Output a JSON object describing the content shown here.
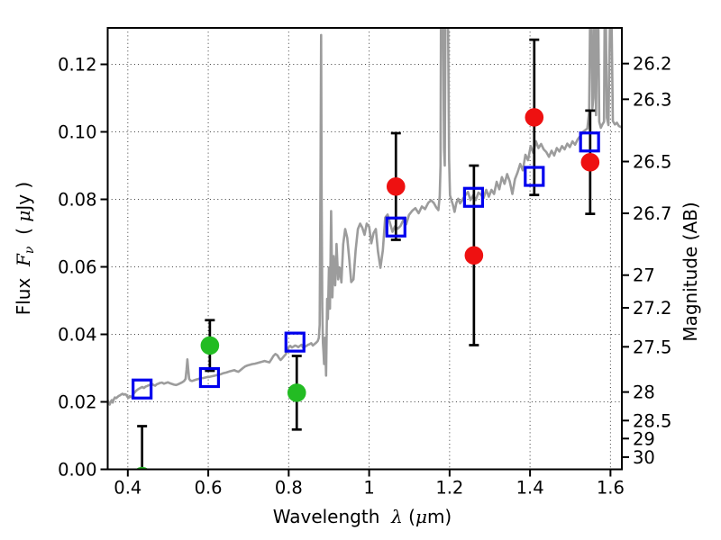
{
  "figure": {
    "background": "#ffffff"
  },
  "chart_data": {
    "type": "line+scatter",
    "title": "",
    "description": "Galaxy SED: gray model spectrum, photometry points with error bars, open squares for synthetic photometry",
    "x_axis": {
      "label_parts": {
        "word": "Wavelength  ",
        "symbol": "λ",
        "open": " (",
        "mu": "μ",
        "close": "m)"
      },
      "lim": [
        0.35,
        1.6283
      ],
      "ticks": [
        {
          "v": 0.4,
          "label": "0.4"
        },
        {
          "v": 0.6,
          "label": "0.6"
        },
        {
          "v": 0.8,
          "label": "0.8"
        },
        {
          "v": 1.0,
          "label": "1"
        },
        {
          "v": 1.2,
          "label": "1.2"
        },
        {
          "v": 1.4,
          "label": "1.4"
        },
        {
          "v": 1.6,
          "label": "1.6"
        }
      ]
    },
    "y_axis_left": {
      "label_parts": {
        "word": "Flux  ",
        "f": "F",
        "sub": "ν",
        "mid": "  ( ",
        "mu": "μ",
        "close": "Jy )"
      },
      "lim": [
        0,
        0.1308
      ],
      "ticks": [
        {
          "v": 0.0,
          "label": "0.00"
        },
        {
          "v": 0.02,
          "label": "0.02"
        },
        {
          "v": 0.04,
          "label": "0.04"
        },
        {
          "v": 0.06,
          "label": "0.06"
        },
        {
          "v": 0.08,
          "label": "0.08"
        },
        {
          "v": 0.1,
          "label": "0.10"
        },
        {
          "v": 0.12,
          "label": "0.12"
        }
      ]
    },
    "y_axis_right": {
      "label": "Magnitude (AB)",
      "zero_point": 23.9,
      "ticks": [
        {
          "mag": 26.2,
          "label": "26.2"
        },
        {
          "mag": 26.3,
          "label": "26.3"
        },
        {
          "mag": 26.5,
          "label": "26.5"
        },
        {
          "mag": 26.7,
          "label": "26.7"
        },
        {
          "mag": 27.0,
          "label": "27"
        },
        {
          "mag": 27.2,
          "label": "27.2"
        },
        {
          "mag": 27.5,
          "label": "27.5"
        },
        {
          "mag": 28.0,
          "label": "28"
        },
        {
          "mag": 28.5,
          "label": "28.5"
        },
        {
          "mag": 29.0,
          "label": "29"
        },
        {
          "mag": 30.0,
          "label": "30"
        }
      ]
    },
    "grid": {
      "on": true,
      "style": "dotted"
    },
    "colors": {
      "spectrum": "#9c9c9c",
      "green": "#23bc23",
      "red": "#ee1111",
      "blue": "#0000ee",
      "errorbar": "#000000"
    },
    "spectrum": {
      "name": "model-spectrum",
      "points": [
        [
          0.35,
          0.0205
        ],
        [
          0.3525,
          0.0196
        ],
        [
          0.355,
          0.0192
        ],
        [
          0.3575,
          0.02
        ],
        [
          0.36,
          0.0205
        ],
        [
          0.3625,
          0.0198
        ],
        [
          0.365,
          0.0207
        ],
        [
          0.368,
          0.0213
        ],
        [
          0.371,
          0.0211
        ],
        [
          0.374,
          0.0214
        ],
        [
          0.377,
          0.0217
        ],
        [
          0.38,
          0.0219
        ],
        [
          0.3835,
          0.0222
        ],
        [
          0.387,
          0.0224
        ],
        [
          0.39,
          0.0221
        ],
        [
          0.393,
          0.0223
        ],
        [
          0.396,
          0.0221
        ],
        [
          0.399,
          0.0215
        ],
        [
          0.402,
          0.0212
        ],
        [
          0.405,
          0.0217
        ],
        [
          0.408,
          0.0214
        ],
        [
          0.411,
          0.0218
        ],
        [
          0.414,
          0.0224
        ],
        [
          0.417,
          0.0228
        ],
        [
          0.42,
          0.0232
        ],
        [
          0.424,
          0.0236
        ],
        [
          0.428,
          0.0239
        ],
        [
          0.432,
          0.0242
        ],
        [
          0.436,
          0.0244
        ],
        [
          0.44,
          0.0241
        ],
        [
          0.444,
          0.0245
        ],
        [
          0.448,
          0.0247
        ],
        [
          0.452,
          0.0249
        ],
        [
          0.456,
          0.0251
        ],
        [
          0.46,
          0.0253
        ],
        [
          0.464,
          0.025
        ],
        [
          0.468,
          0.0248
        ],
        [
          0.472,
          0.0252
        ],
        [
          0.476,
          0.0254
        ],
        [
          0.48,
          0.0256
        ],
        [
          0.485,
          0.0257
        ],
        [
          0.49,
          0.0254
        ],
        [
          0.495,
          0.0256
        ],
        [
          0.5,
          0.0258
        ],
        [
          0.505,
          0.0255
        ],
        [
          0.51,
          0.0253
        ],
        [
          0.515,
          0.0251
        ],
        [
          0.52,
          0.025
        ],
        [
          0.525,
          0.0252
        ],
        [
          0.53,
          0.0255
        ],
        [
          0.535,
          0.0258
        ],
        [
          0.54,
          0.0262
        ],
        [
          0.5435,
          0.0268
        ],
        [
          0.546,
          0.0296
        ],
        [
          0.548,
          0.0326
        ],
        [
          0.55,
          0.0298
        ],
        [
          0.5525,
          0.0268
        ],
        [
          0.556,
          0.0263
        ],
        [
          0.56,
          0.0262
        ],
        [
          0.565,
          0.0264
        ],
        [
          0.57,
          0.0266
        ],
        [
          0.576,
          0.0268
        ],
        [
          0.582,
          0.027
        ],
        [
          0.589,
          0.0271
        ],
        [
          0.596,
          0.0273
        ],
        [
          0.603,
          0.0274
        ],
        [
          0.61,
          0.0276
        ],
        [
          0.617,
          0.0278
        ],
        [
          0.624,
          0.028
        ],
        [
          0.631,
          0.0282
        ],
        [
          0.638,
          0.0285
        ],
        [
          0.645,
          0.0287
        ],
        [
          0.652,
          0.029
        ],
        [
          0.659,
          0.0292
        ],
        [
          0.665,
          0.0294
        ],
        [
          0.67,
          0.0291
        ],
        [
          0.675,
          0.0289
        ],
        [
          0.68,
          0.0294
        ],
        [
          0.686,
          0.03
        ],
        [
          0.692,
          0.0305
        ],
        [
          0.698,
          0.0308
        ],
        [
          0.704,
          0.031
        ],
        [
          0.71,
          0.0312
        ],
        [
          0.716,
          0.0313
        ],
        [
          0.722,
          0.0315
        ],
        [
          0.728,
          0.0317
        ],
        [
          0.734,
          0.0319
        ],
        [
          0.74,
          0.0321
        ],
        [
          0.746,
          0.0319
        ],
        [
          0.752,
          0.0317
        ],
        [
          0.757,
          0.0326
        ],
        [
          0.762,
          0.0336
        ],
        [
          0.767,
          0.0342
        ],
        [
          0.772,
          0.0338
        ],
        [
          0.776,
          0.033
        ],
        [
          0.78,
          0.0324
        ],
        [
          0.784,
          0.0329
        ],
        [
          0.788,
          0.0335
        ],
        [
          0.792,
          0.034
        ],
        [
          0.796,
          0.0349
        ],
        [
          0.8,
          0.0362
        ],
        [
          0.804,
          0.0366
        ],
        [
          0.808,
          0.0361
        ],
        [
          0.812,
          0.0364
        ],
        [
          0.816,
          0.0367
        ],
        [
          0.82,
          0.0365
        ],
        [
          0.824,
          0.0362
        ],
        [
          0.828,
          0.0366
        ],
        [
          0.832,
          0.0369
        ],
        [
          0.836,
          0.036
        ],
        [
          0.84,
          0.0363
        ],
        [
          0.844,
          0.0366
        ],
        [
          0.848,
          0.0369
        ],
        [
          0.852,
          0.0371
        ],
        [
          0.856,
          0.0374
        ],
        [
          0.86,
          0.0367
        ],
        [
          0.864,
          0.0371
        ],
        [
          0.868,
          0.0375
        ],
        [
          0.872,
          0.038
        ],
        [
          0.875,
          0.039
        ],
        [
          0.877,
          0.0428
        ],
        [
          0.879,
          0.085
        ],
        [
          0.8805,
          0.1287
        ],
        [
          0.882,
          0.08
        ],
        [
          0.8835,
          0.048
        ],
        [
          0.885,
          0.0375
        ],
        [
          0.8865,
          0.035
        ],
        [
          0.888,
          0.0312
        ],
        [
          0.89,
          0.039
        ],
        [
          0.8915,
          0.034
        ],
        [
          0.893,
          0.0278
        ],
        [
          0.8955,
          0.0505
        ],
        [
          0.8975,
          0.0445
        ],
        [
          0.9,
          0.0598
        ],
        [
          0.9025,
          0.0476
        ],
        [
          0.9055,
          0.0765
        ],
        [
          0.9085,
          0.051
        ],
        [
          0.9115,
          0.0632
        ],
        [
          0.9155,
          0.0545
        ],
        [
          0.919,
          0.0668
        ],
        [
          0.923,
          0.0563
        ],
        [
          0.9275,
          0.0597
        ],
        [
          0.931,
          0.0554
        ],
        [
          0.9355,
          0.0667
        ],
        [
          0.9405,
          0.0712
        ],
        [
          0.9455,
          0.0686
        ],
        [
          0.9505,
          0.0624
        ],
        [
          0.9555,
          0.0555
        ],
        [
          0.961,
          0.0563
        ],
        [
          0.9665,
          0.0649
        ],
        [
          0.972,
          0.0712
        ],
        [
          0.9775,
          0.0728
        ],
        [
          0.983,
          0.0716
        ],
        [
          0.9885,
          0.0695
        ],
        [
          0.994,
          0.0728
        ],
        [
          1.0,
          0.0719
        ],
        [
          1.0055,
          0.067
        ],
        [
          1.011,
          0.07
        ],
        [
          1.0165,
          0.0712
        ],
        [
          1.022,
          0.0645
        ],
        [
          1.028,
          0.0597
        ],
        [
          1.034,
          0.0649
        ],
        [
          1.04,
          0.0746
        ],
        [
          1.046,
          0.0755
        ],
        [
          1.052,
          0.0729
        ],
        [
          1.058,
          0.0704
        ],
        [
          1.064,
          0.072
        ],
        [
          1.071,
          0.0713
        ],
        [
          1.078,
          0.0721
        ],
        [
          1.085,
          0.0739
        ],
        [
          1.092,
          0.0726
        ],
        [
          1.099,
          0.0754
        ],
        [
          1.107,
          0.0766
        ],
        [
          1.115,
          0.0774
        ],
        [
          1.123,
          0.0759
        ],
        [
          1.131,
          0.0779
        ],
        [
          1.139,
          0.0771
        ],
        [
          1.147,
          0.079
        ],
        [
          1.154,
          0.0797
        ],
        [
          1.161,
          0.0789
        ],
        [
          1.167,
          0.0776
        ],
        [
          1.172,
          0.0768
        ],
        [
          1.1755,
          0.081
        ],
        [
          1.1775,
          0.09
        ],
        [
          1.1787,
          0.135
        ],
        [
          1.1835,
          0.135
        ],
        [
          1.1863,
          0.095
        ],
        [
          1.188,
          0.09
        ],
        [
          1.1899,
          0.135
        ],
        [
          1.196,
          0.135
        ],
        [
          1.1988,
          0.092
        ],
        [
          1.201,
          0.0812
        ],
        [
          1.204,
          0.08
        ],
        [
          1.208,
          0.0785
        ],
        [
          1.2125,
          0.0763
        ],
        [
          1.217,
          0.079
        ],
        [
          1.2215,
          0.0802
        ],
        [
          1.226,
          0.0788
        ],
        [
          1.2325,
          0.08
        ],
        [
          1.239,
          0.0812
        ],
        [
          1.2455,
          0.0822
        ],
        [
          1.252,
          0.0798
        ],
        [
          1.2585,
          0.0812
        ],
        [
          1.265,
          0.0798
        ],
        [
          1.2715,
          0.082
        ],
        [
          1.278,
          0.0814
        ],
        [
          1.2845,
          0.0804
        ],
        [
          1.291,
          0.0828
        ],
        [
          1.2975,
          0.0808
        ],
        [
          1.304,
          0.0828
        ],
        [
          1.3105,
          0.0816
        ],
        [
          1.317,
          0.0852
        ],
        [
          1.3235,
          0.083
        ],
        [
          1.33,
          0.0866
        ],
        [
          1.3365,
          0.0846
        ],
        [
          1.343,
          0.0875
        ],
        [
          1.3495,
          0.0853
        ],
        [
          1.356,
          0.0816
        ],
        [
          1.3625,
          0.086
        ],
        [
          1.369,
          0.088
        ],
        [
          1.3755,
          0.0905
        ],
        [
          1.382,
          0.0886
        ],
        [
          1.3885,
          0.0932
        ],
        [
          1.395,
          0.0916
        ],
        [
          1.4015,
          0.0958
        ],
        [
          1.408,
          0.0938
        ],
        [
          1.4145,
          0.0972
        ],
        [
          1.421,
          0.0952
        ],
        [
          1.4275,
          0.0964
        ],
        [
          1.434,
          0.0948
        ],
        [
          1.4405,
          0.094
        ],
        [
          1.447,
          0.0926
        ],
        [
          1.4535,
          0.0944
        ],
        [
          1.46,
          0.093
        ],
        [
          1.4665,
          0.0952
        ],
        [
          1.473,
          0.0942
        ],
        [
          1.4795,
          0.0958
        ],
        [
          1.486,
          0.0948
        ],
        [
          1.4925,
          0.0965
        ],
        [
          1.499,
          0.0955
        ],
        [
          1.5055,
          0.0972
        ],
        [
          1.512,
          0.0962
        ],
        [
          1.5185,
          0.0978
        ],
        [
          1.525,
          0.0988
        ],
        [
          1.5315,
          0.1
        ],
        [
          1.537,
          0.1005
        ],
        [
          1.5425,
          0.101
        ],
        [
          1.547,
          0.106
        ],
        [
          1.5495,
          0.135
        ],
        [
          1.5525,
          0.135
        ],
        [
          1.555,
          0.107
        ],
        [
          1.5575,
          0.11
        ],
        [
          1.5595,
          0.135
        ],
        [
          1.5615,
          0.135
        ],
        [
          1.564,
          0.105
        ],
        [
          1.567,
          0.135
        ],
        [
          1.5695,
          0.135
        ],
        [
          1.572,
          0.103
        ],
        [
          1.576,
          0.1012
        ],
        [
          1.58,
          0.1022
        ],
        [
          1.584,
          0.103
        ],
        [
          1.5855,
          0.135
        ],
        [
          1.5885,
          0.135
        ],
        [
          1.591,
          0.1042
        ],
        [
          1.595,
          0.102
        ],
        [
          1.599,
          0.135
        ],
        [
          1.6025,
          0.135
        ],
        [
          1.606,
          0.1032
        ],
        [
          1.611,
          0.1022
        ],
        [
          1.616,
          0.1027
        ],
        [
          1.621,
          0.1017
        ],
        [
          1.6283,
          0.1013
        ]
      ]
    },
    "series": [
      {
        "id": "green-photometry",
        "marker": "circle",
        "color": "#23bc23",
        "points": [
          {
            "x": 0.4355,
            "y": -0.002,
            "yerr": 0.0148
          },
          {
            "x": 0.604,
            "y": 0.0367,
            "yerr": 0.0075
          },
          {
            "x": 0.82,
            "y": 0.0227,
            "yerr": 0.0109
          }
        ]
      },
      {
        "id": "red-photometry",
        "marker": "circle",
        "color": "#ee1111",
        "points": [
          {
            "x": 1.0665,
            "y": 0.0838,
            "yerr": 0.0158
          },
          {
            "x": 1.2605,
            "y": 0.0634,
            "yerr": 0.0266
          },
          {
            "x": 1.4105,
            "y": 0.1043,
            "yerr": 0.023
          },
          {
            "x": 1.5495,
            "y": 0.091,
            "yerr": 0.0153
          }
        ]
      },
      {
        "id": "blue-model-photometry",
        "marker": "open-square",
        "color": "#0000ee",
        "points": [
          {
            "x": 0.4355,
            "y": 0.0238
          },
          {
            "x": 0.603,
            "y": 0.0272
          },
          {
            "x": 0.8155,
            "y": 0.0377
          },
          {
            "x": 1.0665,
            "y": 0.0718
          },
          {
            "x": 1.2595,
            "y": 0.0806
          },
          {
            "x": 1.4105,
            "y": 0.0868
          },
          {
            "x": 1.548,
            "y": 0.097
          }
        ]
      }
    ]
  }
}
